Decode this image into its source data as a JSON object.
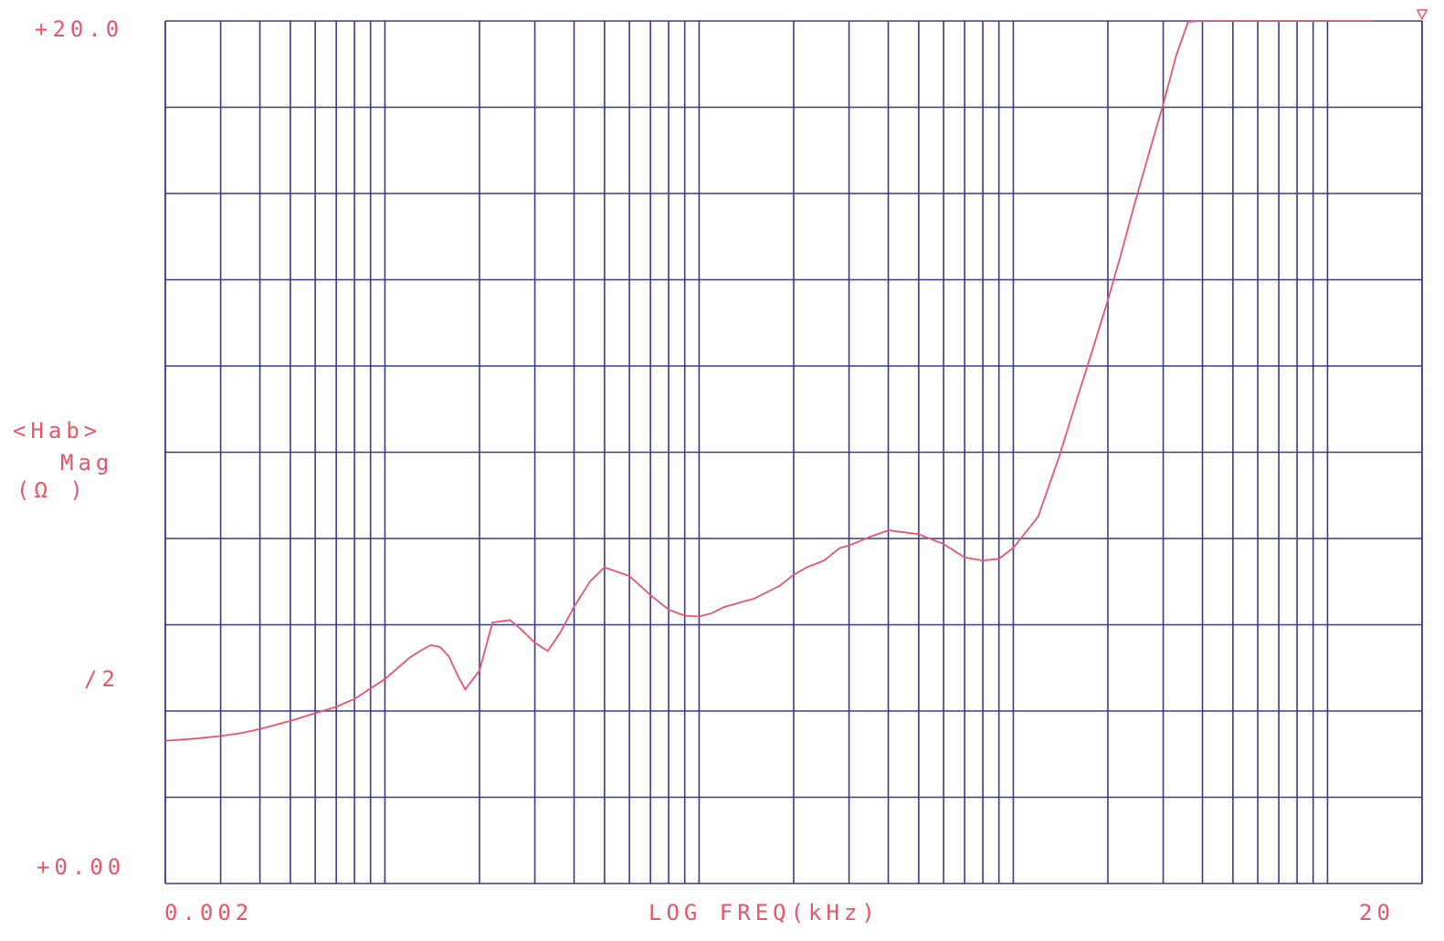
{
  "chart_data": {
    "type": "line",
    "x_scale": "log",
    "x_unit": "kHz",
    "xlim": [
      0.002,
      20
    ],
    "ylim": [
      0,
      20
    ],
    "grid": true,
    "xlabel": "LOG FREQ(kHz)",
    "ylabel_lines": [
      "<Hab>",
      "Mag",
      "(Ω )"
    ],
    "x_tick_labels": [
      "0.002",
      "20"
    ],
    "y_tick_labels": [
      "+20.0",
      "/2",
      "+0.00"
    ],
    "colors": {
      "grid": "#3a3a8c",
      "trace": "#e8556a",
      "text": "#e8556a"
    },
    "series": [
      {
        "x": [
          0.002,
          0.0025,
          0.003,
          0.0035,
          0.004,
          0.005,
          0.006,
          0.007,
          0.008,
          0.01,
          0.012,
          0.013,
          0.014,
          0.015,
          0.016,
          0.017,
          0.018,
          0.02,
          0.022,
          0.025,
          0.027,
          0.03,
          0.033,
          0.036,
          0.04,
          0.045,
          0.05,
          0.06,
          0.07,
          0.08,
          0.09,
          0.1,
          0.11,
          0.12,
          0.15,
          0.18,
          0.2,
          0.22,
          0.25,
          0.28,
          0.3,
          0.33,
          0.35,
          0.4,
          0.5,
          0.6,
          0.7,
          0.8,
          0.9,
          1.0,
          1.2,
          1.4,
          1.6,
          1.8,
          2.0,
          2.2,
          2.4,
          2.7,
          3.0,
          3.3,
          3.6,
          4.0,
          4.5,
          5.0,
          6.0,
          7.0,
          8.0,
          9.0,
          10.0,
          11.0,
          12.0,
          13.0,
          14.0
        ],
        "y": [
          3.31,
          3.36,
          3.42,
          3.49,
          3.58,
          3.77,
          3.95,
          4.1,
          4.28,
          4.74,
          5.24,
          5.4,
          5.53,
          5.48,
          5.26,
          4.84,
          4.5,
          4.94,
          6.05,
          6.11,
          5.91,
          5.58,
          5.39,
          5.8,
          6.42,
          7.01,
          7.33,
          7.13,
          6.69,
          6.35,
          6.21,
          6.19,
          6.27,
          6.41,
          6.61,
          6.9,
          7.16,
          7.33,
          7.49,
          7.78,
          7.84,
          7.96,
          8.04,
          8.19,
          8.1,
          7.87,
          7.56,
          7.49,
          7.53,
          7.78,
          8.51,
          9.9,
          11.27,
          12.45,
          13.53,
          14.58,
          15.6,
          16.92,
          18.07,
          19.2,
          19.98,
          20.0,
          20.0,
          20.0,
          20.0,
          20.0,
          20.0,
          20.0,
          20.0,
          20.0,
          20.0,
          20.0,
          20.0
        ]
      }
    ]
  }
}
